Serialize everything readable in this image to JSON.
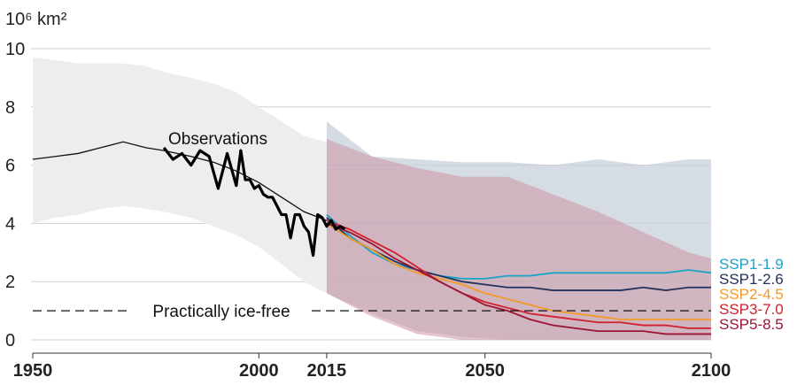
{
  "chart_data": {
    "type": "line",
    "unit_label": "10⁶ km²",
    "xlim": [
      1950,
      2100
    ],
    "ylim": [
      0,
      10
    ],
    "x_ticks": [
      1950,
      2000,
      2015,
      2050,
      2100
    ],
    "y_ticks": [
      0,
      2,
      4,
      6,
      8,
      10
    ],
    "grid": true,
    "threshold": {
      "value": 1,
      "label": "Practically ice-free"
    },
    "observations_label": "Observations",
    "historical": {
      "x": [
        1950,
        1955,
        1960,
        1965,
        1970,
        1975,
        1979,
        1985,
        1990,
        1995,
        2000,
        2005,
        2010,
        2015
      ],
      "y": [
        6.2,
        6.3,
        6.4,
        6.6,
        6.8,
        6.6,
        6.5,
        6.3,
        6.1,
        5.8,
        5.4,
        4.9,
        4.4,
        4.1
      ],
      "band_low": [
        4.0,
        4.2,
        4.3,
        4.5,
        4.6,
        4.5,
        4.4,
        4.2,
        3.9,
        3.6,
        3.2,
        2.6,
        2.0,
        1.6
      ],
      "band_high": [
        9.7,
        9.6,
        9.5,
        9.5,
        9.5,
        9.4,
        9.2,
        9.0,
        8.8,
        8.5,
        8.0,
        7.5,
        7.0,
        6.8
      ]
    },
    "observations": {
      "x": [
        1979,
        1981,
        1983,
        1985,
        1987,
        1989,
        1991,
        1993,
        1995,
        1996,
        1997,
        1998,
        1999,
        2000,
        2001,
        2002,
        2003,
        2004,
        2005,
        2006,
        2007,
        2008,
        2009,
        2010,
        2011,
        2012,
        2013,
        2014,
        2015,
        2016,
        2017,
        2018,
        2019
      ],
      "y": [
        6.6,
        6.2,
        6.4,
        6.0,
        6.5,
        6.3,
        5.2,
        6.4,
        5.3,
        6.5,
        5.5,
        5.5,
        5.2,
        5.3,
        5.0,
        4.9,
        4.9,
        4.6,
        4.3,
        4.3,
        3.5,
        4.3,
        4.3,
        3.9,
        3.7,
        2.9,
        4.3,
        4.2,
        3.9,
        4.1,
        3.8,
        3.9,
        3.8
      ]
    },
    "scenario_bands": [
      {
        "name": "SSP1-1.9 / SSP1-2.6 range",
        "color": "#c8d0d9",
        "x": [
          2015,
          2025,
          2035,
          2045,
          2055,
          2065,
          2075,
          2085,
          2095,
          2100
        ],
        "low": [
          1.6,
          0.9,
          0.3,
          0.1,
          0.0,
          0.0,
          0.0,
          0.0,
          0.0,
          0.0
        ],
        "high": [
          7.5,
          6.3,
          6.2,
          6.1,
          6.1,
          6.0,
          6.2,
          6.0,
          6.2,
          6.2
        ]
      },
      {
        "name": "SSP3-7.0 / SSP5-8.5 range",
        "color": "#c98b9d",
        "x": [
          2015,
          2025,
          2035,
          2045,
          2055,
          2065,
          2075,
          2085,
          2095,
          2100
        ],
        "low": [
          1.6,
          0.8,
          0.2,
          0.0,
          0.0,
          0.0,
          0.0,
          0.0,
          0.0,
          0.0
        ],
        "high": [
          6.9,
          6.3,
          5.9,
          5.6,
          5.6,
          5.0,
          4.4,
          3.7,
          3.0,
          2.8
        ]
      }
    ],
    "series": [
      {
        "name": "SSP1-1.9",
        "color": "#1aa3c9",
        "x": [
          2015,
          2020,
          2025,
          2030,
          2035,
          2040,
          2045,
          2050,
          2055,
          2060,
          2065,
          2070,
          2075,
          2080,
          2085,
          2090,
          2095,
          2100
        ],
        "y": [
          4.3,
          3.6,
          3.0,
          2.6,
          2.4,
          2.2,
          2.1,
          2.1,
          2.2,
          2.2,
          2.3,
          2.3,
          2.3,
          2.3,
          2.3,
          2.3,
          2.4,
          2.3
        ]
      },
      {
        "name": "SSP1-2.6",
        "color": "#23325c",
        "x": [
          2015,
          2020,
          2025,
          2030,
          2035,
          2040,
          2045,
          2050,
          2055,
          2060,
          2065,
          2070,
          2075,
          2080,
          2085,
          2090,
          2095,
          2100
        ],
        "y": [
          4.2,
          3.5,
          3.1,
          2.7,
          2.4,
          2.2,
          2.0,
          1.9,
          1.8,
          1.8,
          1.7,
          1.7,
          1.7,
          1.7,
          1.8,
          1.7,
          1.8,
          1.8
        ]
      },
      {
        "name": "SSP2-4.5",
        "color": "#f39a27",
        "x": [
          2015,
          2020,
          2025,
          2030,
          2035,
          2040,
          2045,
          2050,
          2055,
          2060,
          2065,
          2070,
          2075,
          2080,
          2085,
          2090,
          2095,
          2100
        ],
        "y": [
          4.0,
          3.5,
          3.1,
          2.6,
          2.3,
          2.1,
          1.9,
          1.6,
          1.4,
          1.2,
          1.0,
          0.9,
          0.8,
          0.7,
          0.7,
          0.7,
          0.7,
          0.7
        ]
      },
      {
        "name": "SSP3-7.0",
        "color": "#d0202e",
        "x": [
          2015,
          2020,
          2025,
          2030,
          2035,
          2040,
          2045,
          2050,
          2055,
          2060,
          2065,
          2070,
          2075,
          2080,
          2085,
          2090,
          2095,
          2100
        ],
        "y": [
          4.1,
          3.8,
          3.4,
          3.0,
          2.5,
          2.0,
          1.6,
          1.3,
          1.1,
          0.9,
          0.8,
          0.7,
          0.6,
          0.6,
          0.5,
          0.5,
          0.4,
          0.4
        ]
      },
      {
        "name": "SSP5-8.5",
        "color": "#9c1634",
        "x": [
          2015,
          2020,
          2025,
          2030,
          2035,
          2040,
          2045,
          2050,
          2055,
          2060,
          2065,
          2070,
          2075,
          2080,
          2085,
          2090,
          2095,
          2100
        ],
        "y": [
          4.0,
          3.7,
          3.3,
          2.8,
          2.4,
          2.0,
          1.6,
          1.2,
          1.0,
          0.7,
          0.5,
          0.4,
          0.3,
          0.3,
          0.3,
          0.2,
          0.2,
          0.2
        ]
      }
    ]
  }
}
